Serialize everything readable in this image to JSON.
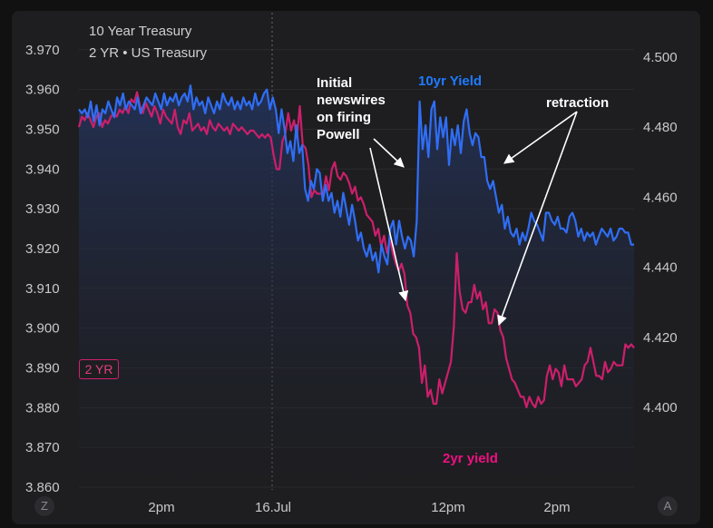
{
  "legend": {
    "main_title": "10 Year Treasury",
    "compare_title": "2 YR • US Treasury",
    "badge": "2 YR"
  },
  "controls": {
    "left_button": "Z",
    "right_button": "A"
  },
  "colors": {
    "ten_year": "#2f6ef5",
    "two_year": "#cc1f6b",
    "label_10yr": "#1e7bff",
    "label_2yr": "#ee1080",
    "annotation": "#ffffff",
    "axis_text": "#c9c9c9"
  },
  "annotations": {
    "label_10yr": "10yr Yield",
    "label_2yr": "2yr yield",
    "retraction": "retraction",
    "initial_news": [
      "Initial",
      "newswires",
      "on firing",
      "Powell"
    ]
  },
  "chart_data": {
    "type": "line",
    "grid": true,
    "x_labels": [
      "2pm",
      "16.Jul",
      "12pm",
      "2pm"
    ],
    "left_axis": {
      "ticks": [
        "3.970",
        "3.960",
        "3.950",
        "3.940",
        "3.930",
        "3.920",
        "3.910",
        "3.900",
        "3.890",
        "3.880",
        "3.870",
        "3.860"
      ],
      "range": [
        3.86,
        3.972
      ]
    },
    "right_axis": {
      "ticks": [
        "4.500",
        "4.480",
        "4.460",
        "4.440",
        "4.420",
        "4.400"
      ],
      "range": [
        4.3772,
        4.5044
      ]
    },
    "series": [
      {
        "name": "10yr Yield",
        "axis": "left",
        "values": [
          3.955,
          3.954,
          3.955,
          3.953,
          3.957,
          3.952,
          3.956,
          3.951,
          3.955,
          3.954,
          3.957,
          3.955,
          3.953,
          3.958,
          3.956,
          3.959,
          3.955,
          3.957,
          3.956,
          3.955,
          3.958,
          3.954,
          3.956,
          3.958,
          3.957,
          3.956,
          3.959,
          3.957,
          3.955,
          3.959,
          3.956,
          3.958,
          3.957,
          3.959,
          3.956,
          3.958,
          3.959,
          3.957,
          3.961,
          3.955,
          3.958,
          3.956,
          3.957,
          3.954,
          3.958,
          3.956,
          3.954,
          3.957,
          3.955,
          3.959,
          3.957,
          3.956,
          3.958,
          3.955,
          3.957,
          3.955,
          3.958,
          3.956,
          3.957,
          3.955,
          3.959,
          3.956,
          3.957,
          3.959,
          3.96,
          3.955,
          3.958,
          3.955,
          3.949,
          3.955,
          3.95,
          3.944,
          3.947,
          3.942,
          3.951,
          3.944,
          3.946,
          3.935,
          3.932,
          3.937,
          3.935,
          3.94,
          3.939,
          3.932,
          3.936,
          3.932,
          3.934,
          3.929,
          3.932,
          3.928,
          3.934,
          3.93,
          3.926,
          3.931,
          3.927,
          3.922,
          3.924,
          3.92,
          3.918,
          3.921,
          3.917,
          3.919,
          3.914,
          3.921,
          3.918,
          3.916,
          3.925,
          3.927,
          3.921,
          3.927,
          3.923,
          3.92,
          3.923,
          3.922,
          3.918,
          3.927,
          3.957,
          3.945,
          3.951,
          3.943,
          3.955,
          3.957,
          3.945,
          3.953,
          3.948,
          3.953,
          3.941,
          3.95,
          3.946,
          3.951,
          3.944,
          3.952,
          3.955,
          3.949,
          3.946,
          3.949,
          3.948,
          3.943,
          3.943,
          3.937,
          3.935,
          3.937,
          3.933,
          3.929,
          3.931,
          3.925,
          3.928,
          3.924,
          3.923,
          3.925,
          3.921,
          3.924,
          3.922,
          3.925,
          3.929,
          3.927,
          3.926,
          3.924,
          3.922,
          3.929,
          3.929,
          3.927,
          3.926,
          3.928,
          3.925,
          3.925,
          3.924,
          3.928,
          3.929,
          3.927,
          3.923,
          3.925,
          3.922,
          3.924,
          3.923,
          3.924,
          3.921,
          3.923,
          3.925,
          3.924,
          3.923,
          3.925,
          3.922,
          3.923,
          3.925,
          3.925,
          3.924,
          3.924,
          3.921,
          3.921
        ]
      },
      {
        "name": "2yr yield",
        "axis": "right",
        "values": [
          4.48,
          4.483,
          4.482,
          4.484,
          4.482,
          4.48,
          4.483,
          4.484,
          4.48,
          4.482,
          4.481,
          4.483,
          4.484,
          4.483,
          4.485,
          4.484,
          4.486,
          4.484,
          4.488,
          4.487,
          4.49,
          4.486,
          4.484,
          4.487,
          4.485,
          4.483,
          4.486,
          4.484,
          4.481,
          4.485,
          4.483,
          4.482,
          4.481,
          4.485,
          4.48,
          4.478,
          4.482,
          4.481,
          4.484,
          4.479,
          4.48,
          4.481,
          4.479,
          4.48,
          4.478,
          4.482,
          4.48,
          4.479,
          4.481,
          4.48,
          4.479,
          4.48,
          4.478,
          4.481,
          4.48,
          4.479,
          4.48,
          4.479,
          4.478,
          4.479,
          4.479,
          4.478,
          4.477,
          4.478,
          4.477,
          4.478,
          4.477,
          4.472,
          4.468,
          4.468,
          4.476,
          4.478,
          4.484,
          4.479,
          4.482,
          4.477,
          4.486,
          4.475,
          4.474,
          4.469,
          4.46,
          4.462,
          4.461,
          4.461,
          4.461,
          4.466,
          4.462,
          4.468,
          4.47,
          4.466,
          4.465,
          4.467,
          4.466,
          4.464,
          4.461,
          4.463,
          4.459,
          4.46,
          4.458,
          4.455,
          4.454,
          4.453,
          4.449,
          4.451,
          4.446,
          4.449,
          4.444,
          4.448,
          4.444,
          4.441,
          4.439,
          4.441,
          4.438,
          4.429,
          4.427,
          4.421,
          4.42,
          4.417,
          4.407,
          4.412,
          4.403,
          4.405,
          4.401,
          4.401,
          4.408,
          4.404,
          4.407,
          4.41,
          4.413,
          4.423,
          4.444,
          4.433,
          4.428,
          4.427,
          4.43,
          4.43,
          4.435,
          4.431,
          4.433,
          4.428,
          4.43,
          4.424,
          4.424,
          4.428,
          4.427,
          4.422,
          4.42,
          4.414,
          4.411,
          4.408,
          4.407,
          4.405,
          4.403,
          4.403,
          4.4,
          4.403,
          4.401,
          4.4,
          4.403,
          4.401,
          4.402,
          4.409,
          4.412,
          4.408,
          4.411,
          4.41,
          4.406,
          4.412,
          4.408,
          4.408,
          4.408,
          4.406,
          4.407,
          4.408,
          4.412,
          4.413,
          4.417,
          4.413,
          4.409,
          4.409,
          4.408,
          4.413,
          4.41,
          4.411,
          4.413,
          4.412,
          4.412,
          4.412,
          4.418,
          4.417,
          4.418,
          4.417
        ]
      }
    ]
  }
}
